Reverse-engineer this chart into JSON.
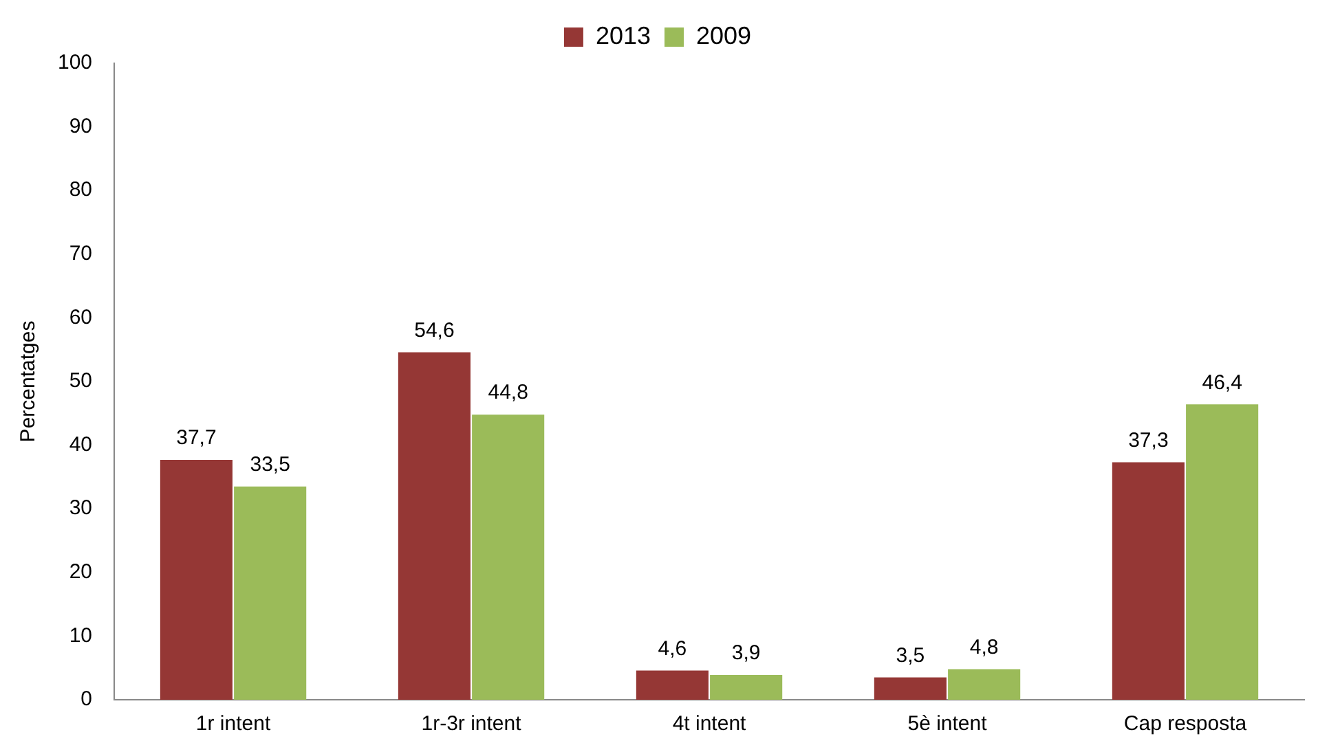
{
  "chart_data": {
    "type": "bar",
    "ylabel": "Percentatges",
    "categories": [
      "1r intent",
      "1r-3r intent",
      "4t intent",
      "5è intent",
      "Cap resposta"
    ],
    "series": [
      {
        "name": "2013",
        "color": "#953735",
        "values": [
          37.7,
          54.6,
          4.6,
          3.5,
          37.3
        ],
        "value_labels": [
          "37,7",
          "54,6",
          "4,6",
          "3,5",
          "37,3"
        ]
      },
      {
        "name": "2009",
        "color": "#9bbb59",
        "values": [
          33.5,
          44.8,
          3.9,
          4.8,
          46.4
        ],
        "value_labels": [
          "33,5",
          "44,8",
          "3,9",
          "4,8",
          "46,4"
        ]
      }
    ],
    "ylim": [
      0,
      100
    ],
    "yticks": [
      0,
      10,
      20,
      30,
      40,
      50,
      60,
      70,
      80,
      90,
      100
    ],
    "grid": false,
    "legend": "top"
  }
}
